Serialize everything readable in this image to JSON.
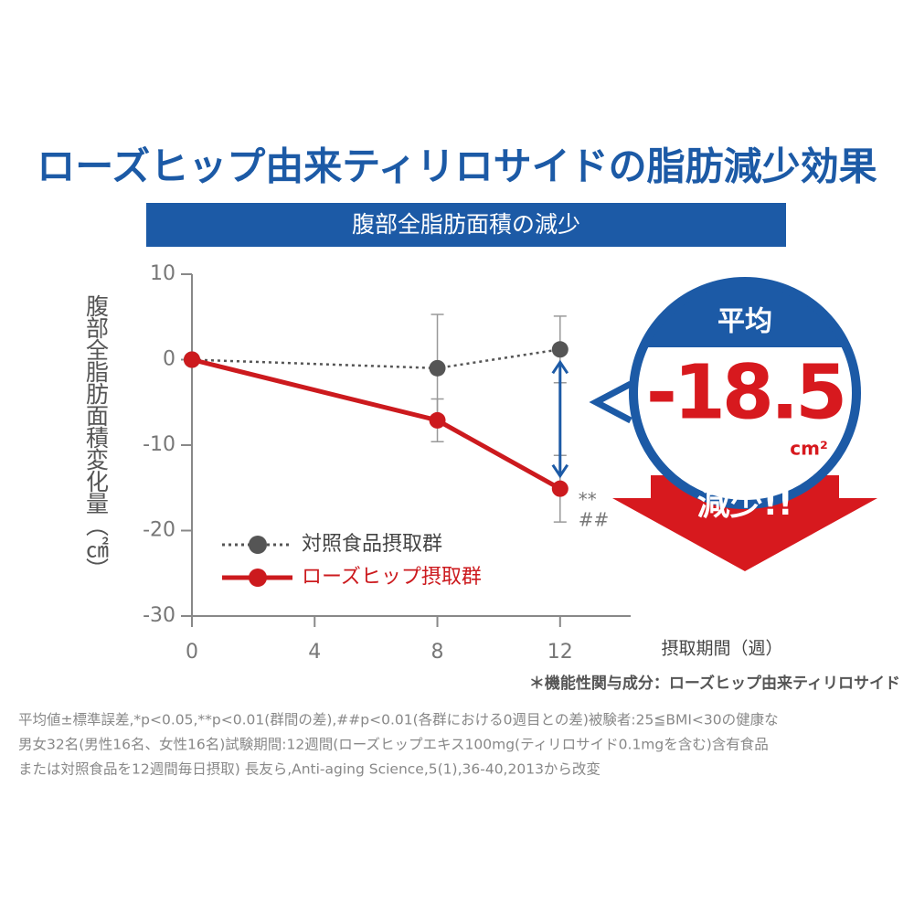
{
  "chart_data": {
    "type": "line",
    "title": "ローズヒップ由来ティリロサイドの脂肪減少効果",
    "subtitle": "腹部全脂肪面積の減少",
    "y_label": "腹部全脂肪面積変化量（㎠）",
    "x_label": "摂取期間（週）",
    "x": [
      0,
      8,
      12
    ],
    "xlim": [
      0,
      14.3
    ],
    "xticks": [
      0,
      4,
      8,
      12
    ],
    "ylim": [
      -30,
      10
    ],
    "yticks": [
      10,
      0,
      -10,
      -20,
      -30
    ],
    "series": [
      {
        "name": "対照食品摂取群",
        "color": "#555555",
        "style": "dotted",
        "values": [
          0,
          -1,
          1.2
        ],
        "errors": [
          0,
          6.3,
          3.9
        ]
      },
      {
        "name": "ローズヒップ摂取群",
        "color": "#cc1a1e",
        "style": "solid",
        "values": [
          0,
          -7.1,
          -15.1
        ],
        "errors": [
          0,
          2.5,
          3.9
        ]
      }
    ],
    "significance": [
      "**",
      "##"
    ],
    "callout": {
      "heading": "平均",
      "value": -18.5,
      "unit": "cm²",
      "footer": "減少!!"
    },
    "note": "＊機能性関与成分：ローズヒップ由来ティリロサイド",
    "footnote": [
      "平均値±標準誤差,*p<0.05,**p<0.01(群間の差),##p<0.01(各群における0週目との差)被験者:25≦BMI<30の健康な",
      "男女32名(男性16名、女性16名)試験期間:12週間(ローズヒップエキス100mg(ティリロサイド0.1mgを含む)含有食品",
      "または対照食品を12週間毎日摂取) 長友ら,Anti-aging Science,5(1),36-40,2013から改変"
    ]
  }
}
